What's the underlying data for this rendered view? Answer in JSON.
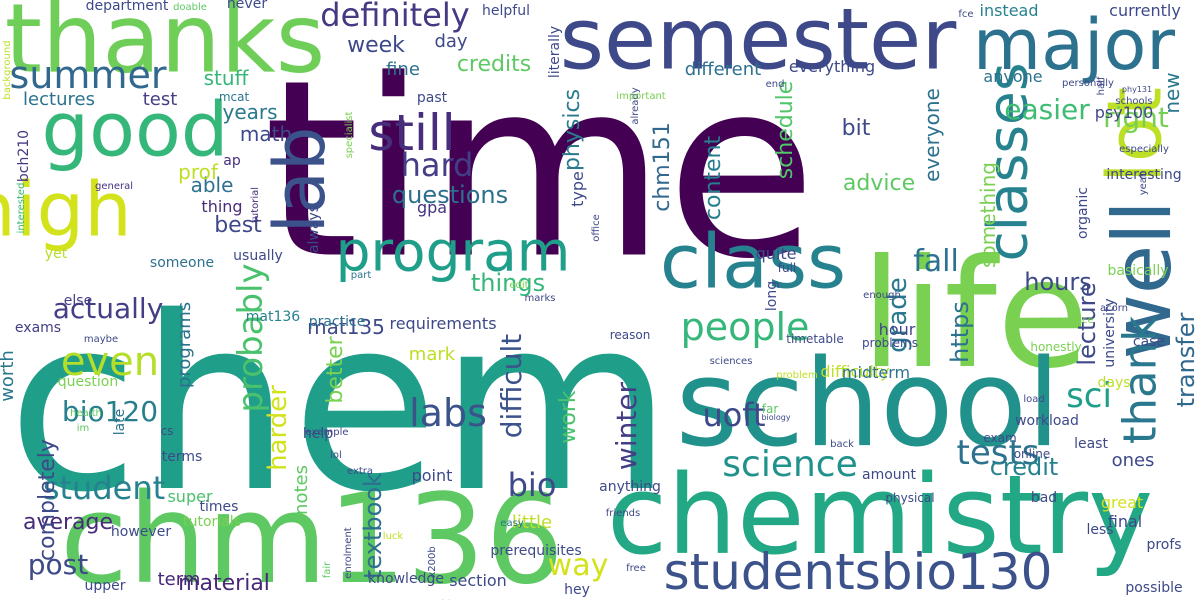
{
  "words": [
    {
      "text": "time",
      "color": "#440154"
    },
    {
      "text": "chem",
      "color": "#1f9e89"
    },
    {
      "text": "chemistry",
      "color": "#22a884"
    },
    {
      "text": "life",
      "color": "#7ad151"
    },
    {
      "text": "school",
      "color": "#21918c"
    },
    {
      "text": "chm136",
      "color": "#5ec962"
    },
    {
      "text": "thanks",
      "color": "#6ece58"
    },
    {
      "text": "semester",
      "color": "#3e4989"
    },
    {
      "text": "major",
      "color": "#2c728e"
    },
    {
      "text": "class",
      "color": "#26828e"
    },
    {
      "text": "well",
      "color": "#31688e"
    },
    {
      "text": "lot",
      "color": "#bddf26"
    },
    {
      "text": "good",
      "color": "#35b779"
    },
    {
      "text": "high",
      "color": "#d2e21b"
    },
    {
      "text": "lab",
      "color": "#3b528b"
    },
    {
      "text": "program",
      "color": "#1f9e89"
    },
    {
      "text": "studentsbio130",
      "color": "#3b528b"
    },
    {
      "text": "classes",
      "color": "#26828e"
    },
    {
      "text": "still",
      "color": "#472d7b"
    },
    {
      "text": "summer",
      "color": "#31688e"
    },
    {
      "text": "definitely",
      "color": "#443983"
    },
    {
      "text": "people",
      "color": "#35b779"
    },
    {
      "text": "thank",
      "color": "#2a788e"
    },
    {
      "text": "science",
      "color": "#21918c"
    },
    {
      "text": "sci",
      "color": "#1f9e89"
    },
    {
      "text": "even",
      "color": "#b5de2b"
    },
    {
      "text": "actually",
      "color": "#433e85"
    },
    {
      "text": "hard",
      "color": "#433e85"
    },
    {
      "text": "bio120",
      "color": "#277f8e"
    },
    {
      "text": "student",
      "color": "#26828e"
    },
    {
      "text": "labs",
      "color": "#3b528b"
    },
    {
      "text": "tests",
      "color": "#2c728e"
    },
    {
      "text": "fall",
      "color": "#2c728e"
    },
    {
      "text": "week",
      "color": "#3e4989"
    },
    {
      "text": "physics",
      "color": "#297b8e"
    },
    {
      "text": "questions",
      "color": "#2d708e"
    },
    {
      "text": "probably",
      "color": "#4ac16d"
    },
    {
      "text": "way",
      "color": "#d2e21b"
    },
    {
      "text": "uoft",
      "color": "#3e4989"
    },
    {
      "text": "chm151",
      "color": "#31688e"
    },
    {
      "text": "difficult",
      "color": "#3b528b"
    },
    {
      "text": "post",
      "color": "#3e4989"
    },
    {
      "text": "average",
      "color": "#472c7a"
    },
    {
      "text": "material",
      "color": "#482878"
    },
    {
      "text": "textbook",
      "color": "#2d708e"
    },
    {
      "text": "bio",
      "color": "#3e4989"
    },
    {
      "text": "credit",
      "color": "#26828e"
    },
    {
      "text": "easier",
      "color": "#3fbc73"
    },
    {
      "text": "right",
      "color": "#75d054"
    },
    {
      "text": "lecture",
      "color": "#3e4989"
    },
    {
      "text": "transfer",
      "color": "#31688e"
    },
    {
      "text": "winter",
      "color": "#433e85"
    },
    {
      "text": "grade",
      "color": "#2a788e"
    },
    {
      "text": "schedule",
      "color": "#52c569"
    },
    {
      "text": "content",
      "color": "#277f8e"
    },
    {
      "text": "things",
      "color": "#35b779"
    },
    {
      "text": "https",
      "color": "#2c728e"
    },
    {
      "text": "hours",
      "color": "#3e4989"
    },
    {
      "text": "harder",
      "color": "#d2e21b"
    },
    {
      "text": "better",
      "color": "#7ad151"
    },
    {
      "text": "work",
      "color": "#4ac16d"
    },
    {
      "text": "mat135",
      "color": "#3e4989"
    },
    {
      "text": "best",
      "color": "#3e4989"
    },
    {
      "text": "able",
      "color": "#2c728e"
    },
    {
      "text": "prof",
      "color": "#bddf26"
    },
    {
      "text": "math",
      "color": "#3e4989"
    },
    {
      "text": "years",
      "color": "#2a788e"
    },
    {
      "text": "stuff",
      "color": "#35b779"
    },
    {
      "text": "credits",
      "color": "#5ec962"
    },
    {
      "text": "fine",
      "color": "#2c728e"
    },
    {
      "text": "day",
      "color": "#3e4989"
    },
    {
      "text": "different",
      "color": "#2c728e"
    },
    {
      "text": "everything",
      "color": "#3e4989"
    },
    {
      "text": "bit",
      "color": "#3e4989"
    },
    {
      "text": "advice",
      "color": "#5ec962"
    },
    {
      "text": "everyone",
      "color": "#2c728e"
    },
    {
      "text": "something",
      "color": "#7ad151"
    },
    {
      "text": "anyone",
      "color": "#2c728e"
    },
    {
      "text": "instead",
      "color": "#26828e"
    },
    {
      "text": "currently",
      "color": "#3e4989"
    },
    {
      "text": "psy100",
      "color": "#3e4989"
    },
    {
      "text": "new",
      "color": "#2a788e"
    },
    {
      "text": "test",
      "color": "#433e85"
    },
    {
      "text": "lectures",
      "color": "#2c728e"
    },
    {
      "text": "mcat",
      "color": "#2a788e"
    },
    {
      "text": "ap",
      "color": "#46327e"
    },
    {
      "text": "thing",
      "color": "#472d7b"
    },
    {
      "text": "gpa",
      "color": "#46327e"
    },
    {
      "text": "helpful",
      "color": "#3e4989"
    },
    {
      "text": "never",
      "color": "#3e4989"
    },
    {
      "text": "department",
      "color": "#3e4989"
    },
    {
      "text": "doable",
      "color": "#5ec962"
    },
    {
      "text": "literally",
      "color": "#3e4989"
    },
    {
      "text": "past",
      "color": "#3e4989"
    },
    {
      "text": "type",
      "color": "#3e4989"
    },
    {
      "text": "specialist",
      "color": "#7ad151"
    },
    {
      "text": "tutorial",
      "color": "#472d7b"
    },
    {
      "text": "bch210",
      "color": "#443983"
    },
    {
      "text": "general",
      "color": "#46327e"
    },
    {
      "text": "background",
      "color": "#bddf26"
    },
    {
      "text": "interested",
      "color": "#35b779"
    },
    {
      "text": "yet",
      "color": "#b5de2b"
    },
    {
      "text": "someone",
      "color": "#2c728e"
    },
    {
      "text": "else",
      "color": "#433e85"
    },
    {
      "text": "exams",
      "color": "#433e85"
    },
    {
      "text": "worth",
      "color": "#2a788e"
    },
    {
      "text": "programs",
      "color": "#2c728e"
    },
    {
      "text": "question",
      "color": "#7ad151"
    },
    {
      "text": "completely",
      "color": "#3e4989"
    },
    {
      "text": "maybe",
      "color": "#3e4989"
    },
    {
      "text": "health",
      "color": "#5ec962"
    },
    {
      "text": "im",
      "color": "#5ec962"
    },
    {
      "text": "late",
      "color": "#2c728e"
    },
    {
      "text": "cs",
      "color": "#3e4989"
    },
    {
      "text": "terms",
      "color": "#3e4989"
    },
    {
      "text": "super",
      "color": "#4ac16d"
    },
    {
      "text": "tutorials",
      "color": "#7ad151"
    },
    {
      "text": "times",
      "color": "#3e4989"
    },
    {
      "text": "however",
      "color": "#3e4989"
    },
    {
      "text": "upper",
      "color": "#3e4989"
    },
    {
      "text": "term",
      "color": "#482878"
    },
    {
      "text": "usually",
      "color": "#3e4989"
    },
    {
      "text": "mat136",
      "color": "#26828e"
    },
    {
      "text": "always",
      "color": "#3e4989"
    },
    {
      "text": "part",
      "color": "#2c728e"
    },
    {
      "text": "practice",
      "color": "#2c728e"
    },
    {
      "text": "requirements",
      "color": "#3e4989"
    },
    {
      "text": "mark",
      "color": "#bddf26"
    },
    {
      "text": "notes",
      "color": "#5ec962"
    },
    {
      "text": "help",
      "color": "#3e4989"
    },
    {
      "text": "lol",
      "color": "#3e4989"
    },
    {
      "text": "example",
      "color": "#3e4989"
    },
    {
      "text": "extra",
      "color": "#3e4989"
    },
    {
      "text": "fair",
      "color": "#5ec962"
    },
    {
      "text": "enrolment",
      "color": "#3e4989"
    },
    {
      "text": "knowledge",
      "color": "#3e4989"
    },
    {
      "text": "luck",
      "color": "#bddf26"
    },
    {
      "text": "point",
      "color": "#3e4989"
    },
    {
      "text": "little",
      "color": "#bddf26"
    },
    {
      "text": "easy",
      "color": "#2c728e"
    },
    {
      "text": "x200b",
      "color": "#3e4989"
    },
    {
      "text": "prerequisites",
      "color": "#3e4989"
    },
    {
      "text": "hey",
      "color": "#3e4989"
    },
    {
      "text": "section",
      "color": "#3e4989"
    },
    {
      "text": "anything",
      "color": "#3e4989"
    },
    {
      "text": "friends",
      "color": "#3e4989"
    },
    {
      "text": "free",
      "color": "#3e4989"
    },
    {
      "text": "idea",
      "color": "#7ad151"
    },
    {
      "text": "office",
      "color": "#3e4989"
    },
    {
      "text": "already",
      "color": "#3e4989"
    },
    {
      "text": "important",
      "color": "#7ad151"
    },
    {
      "text": "end",
      "color": "#3e4989"
    },
    {
      "text": "quite",
      "color": "#3e4989"
    },
    {
      "text": "long",
      "color": "#3e4989"
    },
    {
      "text": "full",
      "color": "#3e4989"
    },
    {
      "text": "marks",
      "color": "#3e4989"
    },
    {
      "text": "edit",
      "color": "#7ad151"
    },
    {
      "text": "reason",
      "color": "#3e4989"
    },
    {
      "text": "sciences",
      "color": "#3e4989"
    },
    {
      "text": "timetable",
      "color": "#3e4989"
    },
    {
      "text": "problem",
      "color": "#bddf26"
    },
    {
      "text": "far",
      "color": "#5ec962"
    },
    {
      "text": "difficulty",
      "color": "#bddf26"
    },
    {
      "text": "midterm",
      "color": "#2c728e"
    },
    {
      "text": "enough",
      "color": "#3e4989"
    },
    {
      "text": "problems",
      "color": "#3e4989"
    },
    {
      "text": "hour",
      "color": "#3e4989"
    },
    {
      "text": "organic",
      "color": "#3e4989"
    },
    {
      "text": "yeah",
      "color": "#3e4989"
    },
    {
      "text": "interesting",
      "color": "#3e4989"
    },
    {
      "text": "especially",
      "color": "#3e4989"
    },
    {
      "text": "basically",
      "color": "#7ad151"
    },
    {
      "text": "experience",
      "color": "#7ad151"
    },
    {
      "text": "acorn",
      "color": "#3e4989"
    },
    {
      "text": "case",
      "color": "#3e4989"
    },
    {
      "text": "university",
      "color": "#3e4989"
    },
    {
      "text": "honestly",
      "color": "#7ad151"
    },
    {
      "text": "days",
      "color": "#bddf26"
    },
    {
      "text": "biology",
      "color": "#3e4989"
    },
    {
      "text": "load",
      "color": "#3e4989"
    },
    {
      "text": "back",
      "color": "#3e4989"
    },
    {
      "text": "workload",
      "color": "#3e4989"
    },
    {
      "text": "exam",
      "color": "#3e4989"
    },
    {
      "text": "least",
      "color": "#3e4989"
    },
    {
      "text": "online",
      "color": "#3e4989"
    },
    {
      "text": "amount",
      "color": "#3e4989"
    },
    {
      "text": "physical",
      "color": "#3e4989"
    },
    {
      "text": "ones",
      "color": "#3e4989"
    },
    {
      "text": "great",
      "color": "#d2e21b"
    },
    {
      "text": "bad",
      "color": "#3e4989"
    },
    {
      "text": "final",
      "color": "#3e4989"
    },
    {
      "text": "less",
      "color": "#3e4989"
    },
    {
      "text": "profs",
      "color": "#3e4989"
    },
    {
      "text": "possible",
      "color": "#3e4989"
    },
    {
      "text": "fce",
      "color": "#3e4989"
    },
    {
      "text": "personally",
      "color": "#3e4989"
    },
    {
      "text": "half",
      "color": "#3e4989"
    },
    {
      "text": "phy131",
      "color": "#3e4989"
    },
    {
      "text": "schools",
      "color": "#3e4989"
    }
  ]
}
